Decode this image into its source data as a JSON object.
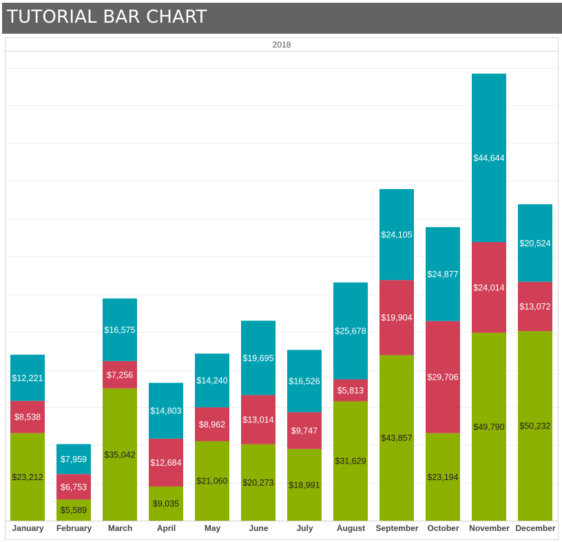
{
  "header": {
    "title": "TUTORIAL BAR CHART"
  },
  "chart_data": {
    "type": "bar",
    "stacked": true,
    "column_header": "2018",
    "categories": [
      "January",
      "February",
      "March",
      "April",
      "May",
      "June",
      "July",
      "August",
      "September",
      "October",
      "November",
      "December"
    ],
    "series": [
      {
        "color": "#8db100",
        "label_color": "#222222",
        "values": [
          23212,
          5589,
          35042,
          9035,
          21060,
          20273,
          18991,
          31629,
          43857,
          23194,
          49790,
          50232
        ],
        "labels": [
          "$23,212",
          "$5,589",
          "$35,042",
          "$9,035",
          "$21,060",
          "$20,273",
          "$18,991",
          "$31,629",
          "$43,857",
          "$23,194",
          "$49,790",
          "$50,232"
        ]
      },
      {
        "color": "#d03f56",
        "label_color": "#ffffff",
        "values": [
          8538,
          6753,
          7256,
          12684,
          8962,
          13014,
          9747,
          5813,
          19904,
          29706,
          24014,
          13072
        ],
        "labels": [
          "$8,538",
          "$6,753",
          "$7,256",
          "$12,684",
          "$8,962",
          "$13,014",
          "$9,747",
          "$5,813",
          "$19,904",
          "$29,706",
          "$24,014",
          "$13,072"
        ]
      },
      {
        "color": "#00a0b0",
        "label_color": "#ffffff",
        "values": [
          12221,
          7959,
          16575,
          14803,
          14240,
          19695,
          16526,
          25678,
          24105,
          24877,
          44644,
          20524
        ],
        "labels": [
          "$12,221",
          "$7,959",
          "$16,575",
          "$14,803",
          "$14,240",
          "$19,695",
          "$16,526",
          "$25,678",
          "$24,105",
          "$24,877",
          "$44,644",
          "$20,524"
        ]
      }
    ],
    "ylim": [
      0,
      120000
    ],
    "grid_step": 10000,
    "grid": true,
    "legend": "none",
    "title": "TUTORIAL BAR CHART"
  }
}
